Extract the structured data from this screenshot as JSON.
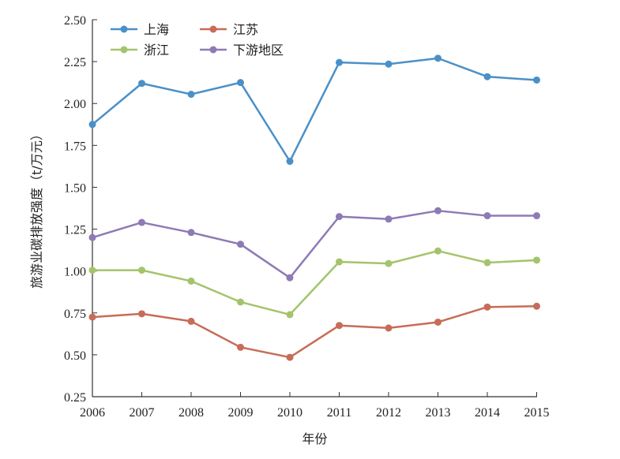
{
  "chart_data": {
    "type": "line",
    "xlabel": "年份",
    "ylabel": "旅游业碳排放强度（t/万元）",
    "x": [
      "2006",
      "2007",
      "2008",
      "2009",
      "2010",
      "2011",
      "2012",
      "2013",
      "2014",
      "2015"
    ],
    "ylim": [
      0.25,
      2.5
    ],
    "yticks": [
      "0.25",
      "0.50",
      "0.75",
      "1.00",
      "1.25",
      "1.50",
      "1.75",
      "2.00",
      "2.25",
      "2.50"
    ],
    "grid": false,
    "legend": "top-left",
    "series": [
      {
        "name": "上海",
        "color": "#4a90c8",
        "values": [
          1.875,
          2.12,
          2.055,
          2.125,
          1.655,
          2.245,
          2.235,
          2.27,
          2.16,
          2.14
        ]
      },
      {
        "name": "江苏",
        "color": "#c76c58",
        "values": [
          0.725,
          0.745,
          0.7,
          0.545,
          0.485,
          0.675,
          0.66,
          0.695,
          0.785,
          0.79
        ]
      },
      {
        "name": "浙江",
        "color": "#a4c46b",
        "values": [
          1.005,
          1.005,
          0.94,
          0.815,
          0.74,
          1.055,
          1.045,
          1.12,
          1.05,
          1.065
        ]
      },
      {
        "name": "下游地区",
        "color": "#8e7ab5",
        "values": [
          1.2,
          1.29,
          1.23,
          1.16,
          0.96,
          1.325,
          1.31,
          1.36,
          1.33,
          1.33
        ]
      }
    ]
  }
}
